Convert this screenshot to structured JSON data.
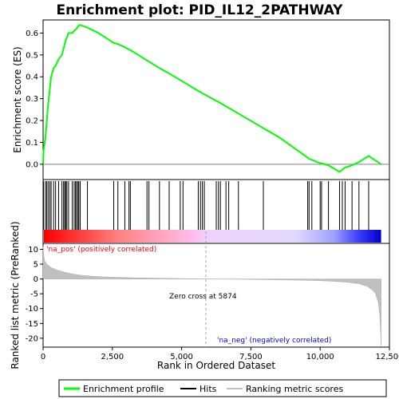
{
  "chart_data": {
    "type": "line",
    "title": "Enrichment plot: PID_IL12_2PATHWAY",
    "xlabel": "Rank in Ordered Dataset",
    "ylabel_top": "Enrichment score (ES)",
    "ylabel_bottom": "Ranked list metric (PreRanked)",
    "xlim": [
      0,
      12500
    ],
    "ylim_top": [
      -0.07,
      0.66
    ],
    "ylim_bottom": [
      -23,
      12
    ],
    "x_ticks": [
      0,
      2500,
      5000,
      7500,
      10000,
      12500
    ],
    "x_tick_labels": [
      "0",
      "2,500",
      "5,000",
      "7,500",
      "10,000",
      "12,500"
    ],
    "y_ticks_top": [
      0.0,
      0.1,
      0.2,
      0.3,
      0.4,
      0.5,
      0.6
    ],
    "y_tick_labels_top": [
      "0.0",
      "0.1",
      "0.2",
      "0.3",
      "0.4",
      "0.5",
      "0.6"
    ],
    "y_ticks_bottom": [
      10,
      5,
      0,
      -5,
      -10,
      -15,
      -20
    ],
    "y_tick_labels_bottom": [
      "10",
      "5",
      "0",
      "-5",
      "-10",
      "-15",
      "-20"
    ],
    "n_genes": 12200,
    "zero_cross": 5874,
    "annotations": {
      "pos_label": "'na_pos' (positively correlated)",
      "neg_label": "'na_neg' (negatively correlated)",
      "zero_cross_label": "Zero cross at 5874"
    },
    "legend": {
      "placement": "bottom",
      "entries": [
        {
          "label": "Enrichment profile",
          "color": "#00ff00"
        },
        {
          "label": "Hits",
          "color": "#000000"
        },
        {
          "label": "Ranking metric scores",
          "color": "#c0c0c0"
        }
      ]
    },
    "colors": {
      "profile": "#00ff00",
      "hits": "#000000",
      "metric": "#c0c0c0",
      "pos_label": "#ff0000",
      "neg_label": "#0000ff",
      "zero_line": "#a0a0a0"
    },
    "hits": [
      15,
      80,
      130,
      180,
      240,
      290,
      380,
      450,
      560,
      680,
      740,
      780,
      820,
      860,
      920,
      1050,
      1120,
      1170,
      1210,
      1260,
      1290,
      1340,
      1600,
      2550,
      2700,
      2950,
      3100,
      3150,
      3750,
      3820,
      4200,
      4550,
      4950,
      5050,
      5600,
      5680,
      5750,
      5820,
      6250,
      6330,
      6400,
      6600,
      6700,
      7050,
      7950,
      9550,
      9600,
      9700,
      10000,
      10050,
      10300,
      10700,
      10800,
      10900,
      11150,
      11400,
      11750
    ],
    "es_profile": [
      [
        0,
        0.0
      ],
      [
        15,
        0.06
      ],
      [
        80,
        0.12
      ],
      [
        130,
        0.19
      ],
      [
        180,
        0.27
      ],
      [
        240,
        0.34
      ],
      [
        290,
        0.4
      ],
      [
        380,
        0.44
      ],
      [
        450,
        0.45
      ],
      [
        560,
        0.48
      ],
      [
        680,
        0.5
      ],
      [
        740,
        0.53
      ],
      [
        780,
        0.55
      ],
      [
        820,
        0.57
      ],
      [
        860,
        0.58
      ],
      [
        920,
        0.6
      ],
      [
        1050,
        0.6
      ],
      [
        1120,
        0.61
      ],
      [
        1170,
        0.615
      ],
      [
        1210,
        0.62
      ],
      [
        1260,
        0.63
      ],
      [
        1290,
        0.635
      ],
      [
        1340,
        0.637
      ],
      [
        1600,
        0.625
      ],
      [
        2000,
        0.6
      ],
      [
        2550,
        0.555
      ],
      [
        2700,
        0.55
      ],
      [
        2950,
        0.535
      ],
      [
        3100,
        0.525
      ],
      [
        3150,
        0.522
      ],
      [
        3750,
        0.475
      ],
      [
        3820,
        0.47
      ],
      [
        4200,
        0.44
      ],
      [
        4550,
        0.415
      ],
      [
        4950,
        0.385
      ],
      [
        5050,
        0.378
      ],
      [
        5600,
        0.335
      ],
      [
        5680,
        0.33
      ],
      [
        5750,
        0.325
      ],
      [
        5820,
        0.32
      ],
      [
        6250,
        0.29
      ],
      [
        6330,
        0.285
      ],
      [
        6400,
        0.28
      ],
      [
        6600,
        0.265
      ],
      [
        6700,
        0.258
      ],
      [
        7050,
        0.232
      ],
      [
        7950,
        0.165
      ],
      [
        8500,
        0.125
      ],
      [
        9000,
        0.08
      ],
      [
        9550,
        0.03
      ],
      [
        9600,
        0.025
      ],
      [
        9700,
        0.02
      ],
      [
        10000,
        0.005
      ],
      [
        10050,
        0.005
      ],
      [
        10300,
        -0.005
      ],
      [
        10700,
        -0.035
      ],
      [
        10800,
        -0.025
      ],
      [
        10900,
        -0.015
      ],
      [
        11150,
        -0.005
      ],
      [
        11400,
        0.01
      ],
      [
        11750,
        0.038
      ],
      [
        12200,
        0.0
      ]
    ],
    "metric_profile": [
      [
        0,
        11
      ],
      [
        20,
        8
      ],
      [
        60,
        6
      ],
      [
        150,
        4.8
      ],
      [
        300,
        3.8
      ],
      [
        500,
        3.0
      ],
      [
        800,
        2.2
      ],
      [
        1100,
        1.6
      ],
      [
        1400,
        1.2
      ],
      [
        1800,
        0.9
      ],
      [
        2200,
        0.7
      ],
      [
        2800,
        0.5
      ],
      [
        3500,
        0.35
      ],
      [
        4500,
        0.2
      ],
      [
        5500,
        0.05
      ],
      [
        5874,
        0.0
      ],
      [
        6500,
        -0.05
      ],
      [
        7500,
        -0.15
      ],
      [
        8500,
        -0.3
      ],
      [
        9500,
        -0.45
      ],
      [
        10000,
        -0.6
      ],
      [
        10500,
        -0.8
      ],
      [
        11000,
        -1.1
      ],
      [
        11400,
        -1.6
      ],
      [
        11700,
        -2.5
      ],
      [
        11900,
        -3.8
      ],
      [
        12000,
        -5
      ],
      [
        12100,
        -8
      ],
      [
        12150,
        -12
      ],
      [
        12180,
        -17
      ],
      [
        12200,
        -22.5
      ]
    ]
  }
}
